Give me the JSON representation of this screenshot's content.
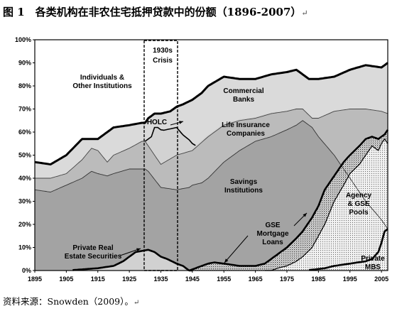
{
  "title": "图 1　各类机构在非农住宅抵押贷款中的份额（1896-2007）",
  "return_mark": "↵",
  "source": "资料来源：Snowden（2009）。",
  "chart_data": {
    "type": "area",
    "title": "",
    "xlabel": "",
    "ylabel": "",
    "xlim": [
      1895,
      2007
    ],
    "ylim": [
      0,
      100
    ],
    "x_ticks": [
      "1895",
      "1905",
      "1915",
      "1925",
      "1935",
      "1945",
      "1955",
      "1965",
      "1975",
      "1985",
      "1995",
      "2005"
    ],
    "y_ticks": [
      "0%",
      "10%",
      "20%",
      "30%",
      "40%",
      "50%",
      "60%",
      "70%",
      "80%",
      "90%",
      "100%"
    ],
    "grid": false,
    "legend": "none",
    "annotations": {
      "individuals": "Individuals &\nOther Institutions",
      "crisis": "1930s\nCrisis",
      "commercial": "Commercial\nBanks",
      "holc": "HOLC",
      "life": "Life Insurance\nCompanies",
      "savings": "Savings\nInstitutions",
      "private_real": "Private Real\nEstate Securities",
      "gse_loans": "GSE\nMortgage\nLoans",
      "agency": "Agency\n& GSE\nPools",
      "private_mbs": "Private\nMBS"
    },
    "series": [
      {
        "name": "Private MBS",
        "x": [
          1895,
          1980,
          1984,
          1987,
          1990,
          1995,
          2000,
          2002,
          2004,
          2005,
          2006,
          2007
        ],
        "values": [
          0,
          0,
          0.5,
          1,
          2,
          3,
          4,
          5,
          8,
          12,
          17,
          18
        ]
      },
      {
        "name": "Agency & GSE Pools",
        "x": [
          1895,
          1970,
          1972,
          1975,
          1978,
          1980,
          1983,
          1985,
          1987,
          1990,
          1993,
          1995,
          1998,
          2000,
          2002,
          2004,
          2005,
          2006,
          2007
        ],
        "values": [
          0,
          0,
          1,
          2,
          4,
          6,
          10,
          15,
          20,
          30,
          37,
          42,
          46,
          50,
          54,
          52,
          55,
          57,
          55
        ]
      },
      {
        "name": "GSE Mortgage Loans",
        "x": [
          1895,
          1944,
          1946,
          1948,
          1950,
          1952,
          1955,
          1960,
          1965,
          1968,
          1970,
          1973,
          1975,
          1978,
          1980,
          1983,
          1985,
          1987,
          1990,
          1993,
          1995,
          1998,
          2000,
          2002,
          2004,
          2005,
          2006,
          2007
        ],
        "values": [
          0,
          0,
          1,
          2,
          3,
          3.5,
          3,
          2,
          2,
          3,
          5,
          8,
          10,
          14,
          17,
          23,
          28,
          35,
          41,
          47,
          50,
          54,
          57,
          58,
          57,
          58,
          59,
          61
        ]
      },
      {
        "name": "Private Real Estate Securities",
        "x": [
          1895,
          1900,
          1905,
          1910,
          1915,
          1920,
          1923,
          1925,
          1927,
          1929,
          1931,
          1933,
          1935,
          1937,
          1940,
          1942,
          1944,
          1946,
          2007
        ],
        "values": [
          0,
          0,
          0,
          0.5,
          1,
          2,
          4,
          6,
          8,
          8.5,
          9,
          8,
          6,
          5,
          3,
          2,
          0,
          0,
          0
        ]
      },
      {
        "name": "Savings Institutions",
        "x": [
          1895,
          1900,
          1905,
          1910,
          1913,
          1915,
          1918,
          1920,
          1925,
          1929,
          1930,
          1931,
          1935,
          1940,
          1944,
          1945,
          1948,
          1950,
          1955,
          1960,
          1965,
          1970,
          1975,
          1978,
          1980,
          1983,
          1985,
          1990,
          1995,
          2000,
          2005,
          2007
        ],
        "values": [
          35,
          34,
          37,
          40,
          43,
          42,
          41,
          42,
          44,
          44,
          44,
          43,
          36,
          35,
          36,
          37,
          38,
          40,
          47,
          52,
          56,
          58,
          61,
          63,
          65,
          62,
          58,
          50,
          40,
          30,
          22,
          18
        ]
      },
      {
        "name": "Life Insurance Companies",
        "x": [
          1895,
          1900,
          1905,
          1910,
          1913,
          1915,
          1918,
          1920,
          1925,
          1929,
          1930,
          1931,
          1935,
          1940,
          1945,
          1950,
          1955,
          1960,
          1965,
          1970,
          1975,
          1978,
          1980,
          1983,
          1985,
          1990,
          1995,
          2000,
          2005,
          2007
        ],
        "values": [
          40,
          40,
          42,
          48,
          53,
          52,
          47,
          50,
          53,
          56,
          56,
          54,
          46,
          50,
          52,
          58,
          63,
          65,
          66,
          68,
          69,
          70,
          70,
          66,
          66,
          69,
          70,
          70,
          69,
          68
        ]
      },
      {
        "name": "HOLC",
        "x": [
          1895,
          1930,
          1932,
          1933,
          1934,
          1935,
          1936,
          1938,
          1940,
          1942,
          1944,
          1946,
          2007
        ],
        "values": [
          0,
          0,
          6,
          12,
          14,
          15,
          14,
          13,
          12,
          8,
          5,
          1,
          0
        ]
      },
      {
        "name": "Commercial Banks",
        "x": [
          1895,
          1900,
          1905,
          1910,
          1915,
          1920,
          1925,
          1929,
          1930,
          1931,
          1933,
          1935,
          1938,
          1940,
          1942,
          1945,
          1948,
          1950,
          1955,
          1960,
          1965,
          1970,
          1975,
          1978,
          1980,
          1982,
          1985,
          1990,
          1995,
          2000,
          2005,
          2007
        ],
        "values": [
          47,
          46,
          50,
          57,
          57,
          62,
          63,
          64,
          64,
          66,
          68,
          68,
          69,
          71,
          72,
          74,
          77,
          80,
          84,
          83,
          83,
          85,
          86,
          87,
          85,
          83,
          83,
          84,
          87,
          89,
          88,
          90
        ]
      },
      {
        "name": "Individuals & Other Institutions",
        "x": [
          1895,
          2007
        ],
        "values": [
          100,
          100
        ]
      }
    ]
  }
}
